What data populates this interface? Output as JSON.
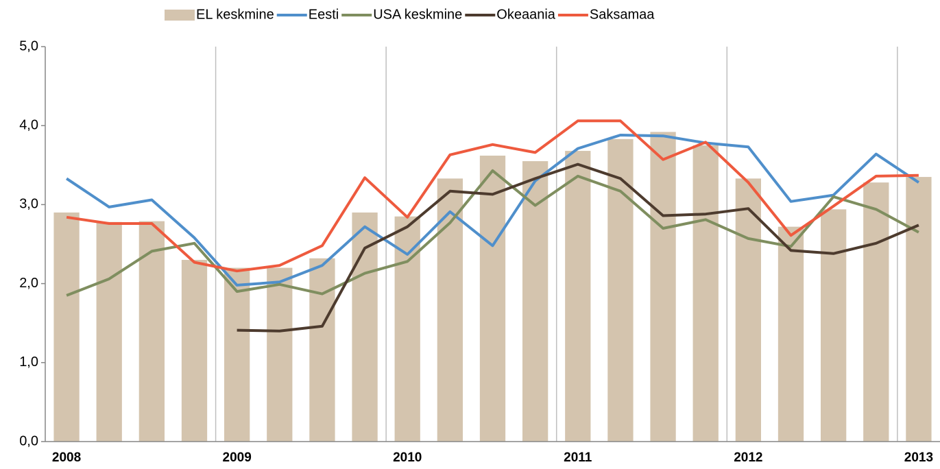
{
  "chart_data": {
    "type": "bar-line",
    "categories": [
      "2008",
      null,
      null,
      null,
      "2009",
      null,
      null,
      null,
      "2010",
      null,
      null,
      null,
      "2011",
      null,
      null,
      null,
      "2012",
      null,
      null,
      null,
      "2013"
    ],
    "series": [
      {
        "name": "EL keskmine",
        "type": "bar",
        "color": "#d4c4ae",
        "values": [
          2.9,
          2.78,
          2.79,
          2.3,
          2.2,
          2.2,
          2.32,
          2.9,
          2.85,
          3.33,
          3.62,
          3.55,
          3.68,
          3.83,
          3.92,
          3.75,
          3.33,
          2.72,
          2.94,
          3.28,
          3.35
        ]
      },
      {
        "name": "Eesti",
        "type": "line",
        "color": "#4f8fcb",
        "values": [
          3.33,
          2.97,
          3.06,
          2.58,
          1.98,
          2.02,
          2.23,
          2.72,
          2.37,
          2.91,
          2.48,
          3.3,
          3.71,
          3.88,
          3.87,
          3.78,
          3.73,
          3.04,
          3.12,
          3.64,
          3.28
        ]
      },
      {
        "name": "USA keskmine",
        "type": "line",
        "color": "#7f8e5f",
        "values": [
          1.85,
          2.06,
          2.41,
          2.51,
          1.9,
          1.99,
          1.87,
          2.13,
          2.28,
          2.77,
          3.43,
          2.99,
          3.36,
          3.17,
          2.7,
          2.81,
          2.57,
          2.47,
          3.1,
          2.94,
          2.65
        ]
      },
      {
        "name": "Okeaania",
        "type": "line",
        "color": "#4d3b2e",
        "values": [
          null,
          null,
          null,
          null,
          1.41,
          1.4,
          1.46,
          2.45,
          2.72,
          3.17,
          3.13,
          3.33,
          3.51,
          3.33,
          2.86,
          2.88,
          2.95,
          2.42,
          2.38,
          2.51,
          2.74
        ]
      },
      {
        "name": "Saksamaa",
        "type": "line",
        "color": "#ee5a3e",
        "values": [
          2.84,
          2.76,
          2.76,
          2.27,
          2.16,
          2.23,
          2.48,
          3.34,
          2.84,
          3.63,
          3.76,
          3.66,
          4.06,
          4.06,
          3.57,
          3.79,
          3.28,
          2.61,
          2.98,
          3.36,
          3.37
        ]
      }
    ],
    "ylim": [
      0,
      5
    ],
    "yticks": [
      {
        "value": 0,
        "label": "0,0"
      },
      {
        "value": 1,
        "label": "1,0"
      },
      {
        "value": 2,
        "label": "2,0"
      },
      {
        "value": 3,
        "label": "3,0"
      },
      {
        "value": 4,
        "label": "4,0"
      },
      {
        "value": 5,
        "label": "5,0"
      }
    ],
    "grid": false,
    "legend": "top"
  }
}
